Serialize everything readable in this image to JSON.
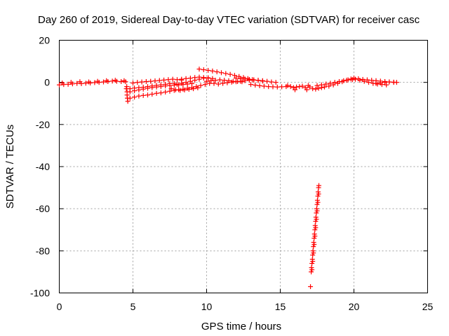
{
  "chart_data": {
    "type": "scatter",
    "title": "Day 260 of 2019, Sidereal Day-to-day VTEC variation (SDTVAR) for receiver casc",
    "xlabel": "GPS time / hours",
    "ylabel": "SDTVAR / TECUs",
    "xlim": [
      0,
      25
    ],
    "ylim": [
      -100,
      20
    ],
    "xticks": [
      "0",
      "5",
      "10",
      "15",
      "20",
      "25"
    ],
    "yticks": [
      "20",
      "0",
      "-20",
      "-40",
      "-60",
      "-80",
      "-100"
    ],
    "grid": true,
    "marker": "+",
    "series_color": "#ff0000",
    "series": [
      {
        "values": [
          [
            0.0,
            -1.2
          ],
          [
            0.3,
            -1.0
          ],
          [
            0.6,
            -0.9
          ],
          [
            0.9,
            -0.7
          ],
          [
            1.2,
            -0.5
          ],
          [
            1.5,
            -0.6
          ],
          [
            1.8,
            -0.4
          ],
          [
            2.1,
            -0.3
          ],
          [
            2.4,
            -0.1
          ],
          [
            2.7,
            0.0
          ],
          [
            3.0,
            0.2
          ],
          [
            3.3,
            0.4
          ],
          [
            3.6,
            0.6
          ],
          [
            3.9,
            0.5
          ],
          [
            4.2,
            0.4
          ],
          [
            4.5,
            0.3
          ],
          [
            0.2,
            -0.3
          ],
          [
            0.8,
            0.0
          ],
          [
            1.4,
            0.3
          ],
          [
            2.0,
            0.2
          ],
          [
            2.6,
            0.5
          ],
          [
            3.2,
            0.8
          ],
          [
            3.8,
            1.0
          ],
          [
            4.4,
            0.8
          ],
          [
            4.55,
            -3.0
          ],
          [
            4.6,
            -4.5
          ],
          [
            4.6,
            -6.0
          ],
          [
            4.62,
            -7.5
          ],
          [
            4.65,
            -9.0
          ],
          [
            4.58,
            -2.0
          ],
          [
            4.8,
            -7.5
          ],
          [
            5.1,
            -7.0
          ],
          [
            5.4,
            -6.5
          ],
          [
            5.7,
            -6.2
          ],
          [
            6.0,
            -6.0
          ],
          [
            6.3,
            -5.6
          ],
          [
            6.6,
            -5.2
          ],
          [
            6.9,
            -5.0
          ],
          [
            7.2,
            -4.6
          ],
          [
            7.5,
            -4.2
          ],
          [
            7.8,
            -3.8
          ],
          [
            8.1,
            -3.5
          ],
          [
            8.4,
            -3.2
          ],
          [
            8.7,
            -2.8
          ],
          [
            9.0,
            -2.5
          ],
          [
            9.3,
            -2.0
          ],
          [
            9.6,
            -1.5
          ],
          [
            9.9,
            -1.0
          ],
          [
            10.2,
            -0.5
          ],
          [
            4.8,
            -4.5
          ],
          [
            5.1,
            -4.0
          ],
          [
            5.4,
            -3.6
          ],
          [
            5.7,
            -3.2
          ],
          [
            6.0,
            -2.8
          ],
          [
            6.3,
            -2.5
          ],
          [
            6.6,
            -2.2
          ],
          [
            6.9,
            -2.0
          ],
          [
            7.2,
            -1.7
          ],
          [
            7.5,
            -1.5
          ],
          [
            7.8,
            -1.3
          ],
          [
            8.1,
            -1.2
          ],
          [
            8.4,
            -1.0
          ],
          [
            8.7,
            -0.8
          ],
          [
            9.0,
            -0.6
          ],
          [
            4.8,
            -3.0
          ],
          [
            5.1,
            -2.7
          ],
          [
            5.4,
            -2.5
          ],
          [
            5.7,
            -2.3
          ],
          [
            6.0,
            -2.0
          ],
          [
            6.3,
            -1.7
          ],
          [
            6.6,
            -1.4
          ],
          [
            6.9,
            -1.2
          ],
          [
            7.2,
            -0.9
          ],
          [
            7.5,
            -0.6
          ],
          [
            7.8,
            -0.5
          ],
          [
            5.0,
            -0.3
          ],
          [
            5.3,
            0.0
          ],
          [
            5.6,
            0.2
          ],
          [
            5.9,
            0.4
          ],
          [
            6.2,
            0.5
          ],
          [
            6.5,
            0.7
          ],
          [
            6.8,
            0.9
          ],
          [
            7.1,
            1.1
          ],
          [
            7.4,
            1.3
          ],
          [
            7.7,
            1.5
          ],
          [
            8.0,
            1.3
          ],
          [
            8.3,
            1.1
          ],
          [
            7.6,
            -3.0
          ],
          [
            7.9,
            -3.5
          ],
          [
            8.2,
            -3.8
          ],
          [
            8.5,
            -3.6
          ],
          [
            8.8,
            -3.3
          ],
          [
            9.1,
            -3.0
          ],
          [
            9.4,
            -2.6
          ],
          [
            8.0,
            -1.0
          ],
          [
            8.3,
            -0.5
          ],
          [
            8.6,
            0.0
          ],
          [
            8.9,
            0.5
          ],
          [
            9.2,
            1.0
          ],
          [
            9.5,
            1.5
          ],
          [
            9.8,
            2.0
          ],
          [
            10.1,
            2.2
          ],
          [
            8.3,
            1.5
          ],
          [
            8.6,
            1.8
          ],
          [
            8.9,
            2.0
          ],
          [
            9.2,
            2.3
          ],
          [
            9.5,
            2.5
          ],
          [
            9.8,
            2.3
          ],
          [
            10.1,
            2.0
          ],
          [
            10.4,
            1.8
          ],
          [
            9.5,
            6.3
          ],
          [
            9.8,
            6.0
          ],
          [
            10.1,
            5.7
          ],
          [
            10.4,
            5.4
          ],
          [
            10.7,
            5.0
          ],
          [
            11.0,
            4.6
          ],
          [
            11.3,
            4.2
          ],
          [
            11.6,
            3.8
          ],
          [
            11.9,
            3.3
          ],
          [
            12.2,
            2.8
          ],
          [
            12.5,
            2.3
          ],
          [
            12.8,
            1.8
          ],
          [
            13.1,
            1.3
          ],
          [
            10.0,
            0.5
          ],
          [
            10.3,
            0.8
          ],
          [
            10.6,
            1.0
          ],
          [
            10.9,
            1.2
          ],
          [
            11.2,
            1.0
          ],
          [
            11.5,
            0.8
          ],
          [
            11.8,
            0.5
          ],
          [
            12.1,
            0.4
          ],
          [
            12.4,
            0.3
          ],
          [
            10.5,
            -0.5
          ],
          [
            10.8,
            -0.8
          ],
          [
            11.1,
            -0.5
          ],
          [
            11.4,
            -0.2
          ],
          [
            11.7,
            0.1
          ],
          [
            12.0,
            0.3
          ],
          [
            12.3,
            0.5
          ],
          [
            12.6,
            0.8
          ],
          [
            12.9,
            1.0
          ],
          [
            13.2,
            1.1
          ],
          [
            13.5,
            1.0
          ],
          [
            13.8,
            0.8
          ],
          [
            14.1,
            0.5
          ],
          [
            14.4,
            0.2
          ],
          [
            14.7,
            0.0
          ],
          [
            12.0,
            2.0
          ],
          [
            12.3,
            1.8
          ],
          [
            12.6,
            1.6
          ],
          [
            12.9,
            1.4
          ],
          [
            13.2,
            1.2
          ],
          [
            13.5,
            0.9
          ],
          [
            13.8,
            0.6
          ],
          [
            13.0,
            -1.0
          ],
          [
            13.3,
            -1.3
          ],
          [
            13.6,
            -1.6
          ],
          [
            13.9,
            -1.8
          ],
          [
            14.2,
            -2.0
          ],
          [
            14.5,
            -2.1
          ],
          [
            14.8,
            -2.2
          ],
          [
            15.1,
            -2.1
          ],
          [
            15.4,
            -2.0
          ],
          [
            15.5,
            -1.5
          ],
          [
            15.7,
            -2.0
          ],
          [
            15.9,
            -2.5
          ],
          [
            16.0,
            -3.5
          ],
          [
            16.1,
            -2.2
          ],
          [
            16.3,
            -2.0
          ],
          [
            16.5,
            -1.8
          ],
          [
            16.7,
            -2.5
          ],
          [
            16.8,
            -3.5
          ],
          [
            16.9,
            -1.5
          ],
          [
            17.0,
            -2.2
          ],
          [
            17.2,
            -3.0
          ],
          [
            17.4,
            -3.2
          ],
          [
            17.6,
            -2.8
          ],
          [
            17.8,
            -2.5
          ],
          [
            18.0,
            -2.2
          ],
          [
            18.3,
            -1.8
          ],
          [
            18.6,
            -1.2
          ],
          [
            18.9,
            -0.5
          ],
          [
            19.2,
            0.3
          ],
          [
            19.5,
            1.0
          ],
          [
            19.8,
            1.6
          ],
          [
            20.1,
            1.5
          ],
          [
            20.4,
            1.0
          ],
          [
            20.7,
            0.5
          ],
          [
            21.0,
            0.0
          ],
          [
            21.3,
            -0.5
          ],
          [
            21.6,
            -0.8
          ],
          [
            21.9,
            -1.0
          ],
          [
            22.2,
            -1.2
          ],
          [
            17.5,
            -1.5
          ],
          [
            17.8,
            -1.2
          ],
          [
            18.1,
            -0.8
          ],
          [
            18.4,
            -0.4
          ],
          [
            18.7,
            0.0
          ],
          [
            19.0,
            0.4
          ],
          [
            19.3,
            0.8
          ],
          [
            19.6,
            1.2
          ],
          [
            19.9,
            1.3
          ],
          [
            20.0,
            2.0
          ],
          [
            20.3,
            1.7
          ],
          [
            20.6,
            1.4
          ],
          [
            20.9,
            1.2
          ],
          [
            21.2,
            1.0
          ],
          [
            21.5,
            0.8
          ],
          [
            21.8,
            0.6
          ],
          [
            22.1,
            0.4
          ],
          [
            22.4,
            0.2
          ],
          [
            22.7,
            0.0
          ],
          [
            21.5,
            -0.5
          ],
          [
            21.8,
            -0.3
          ],
          [
            22.1,
            0.0
          ],
          [
            22.4,
            0.2
          ],
          [
            22.7,
            0.1
          ],
          [
            22.9,
            0.0
          ],
          [
            17.05,
            -97.0
          ],
          [
            17.1,
            -90.0
          ],
          [
            17.12,
            -88.0
          ],
          [
            17.15,
            -86.0
          ],
          [
            17.18,
            -84.0
          ],
          [
            17.2,
            -82.0
          ],
          [
            17.22,
            -80.0
          ],
          [
            17.25,
            -78.0
          ],
          [
            17.27,
            -76.0
          ],
          [
            17.3,
            -74.0
          ],
          [
            17.32,
            -72.0
          ],
          [
            17.35,
            -70.0
          ],
          [
            17.37,
            -68.0
          ],
          [
            17.4,
            -66.0
          ],
          [
            17.42,
            -64.0
          ],
          [
            17.45,
            -62.0
          ],
          [
            17.47,
            -60.0
          ],
          [
            17.5,
            -58.0
          ],
          [
            17.52,
            -56.0
          ],
          [
            17.55,
            -54.0
          ],
          [
            17.57,
            -52.0
          ],
          [
            17.6,
            -50.0
          ],
          [
            17.62,
            -49.0
          ],
          [
            17.15,
            -89.0
          ],
          [
            17.2,
            -85.0
          ],
          [
            17.25,
            -81.0
          ],
          [
            17.3,
            -77.0
          ],
          [
            17.35,
            -73.0
          ],
          [
            17.4,
            -69.0
          ],
          [
            17.45,
            -65.0
          ],
          [
            17.5,
            -61.0
          ],
          [
            17.55,
            -57.0
          ],
          [
            17.6,
            -53.0
          ]
        ]
      }
    ]
  }
}
